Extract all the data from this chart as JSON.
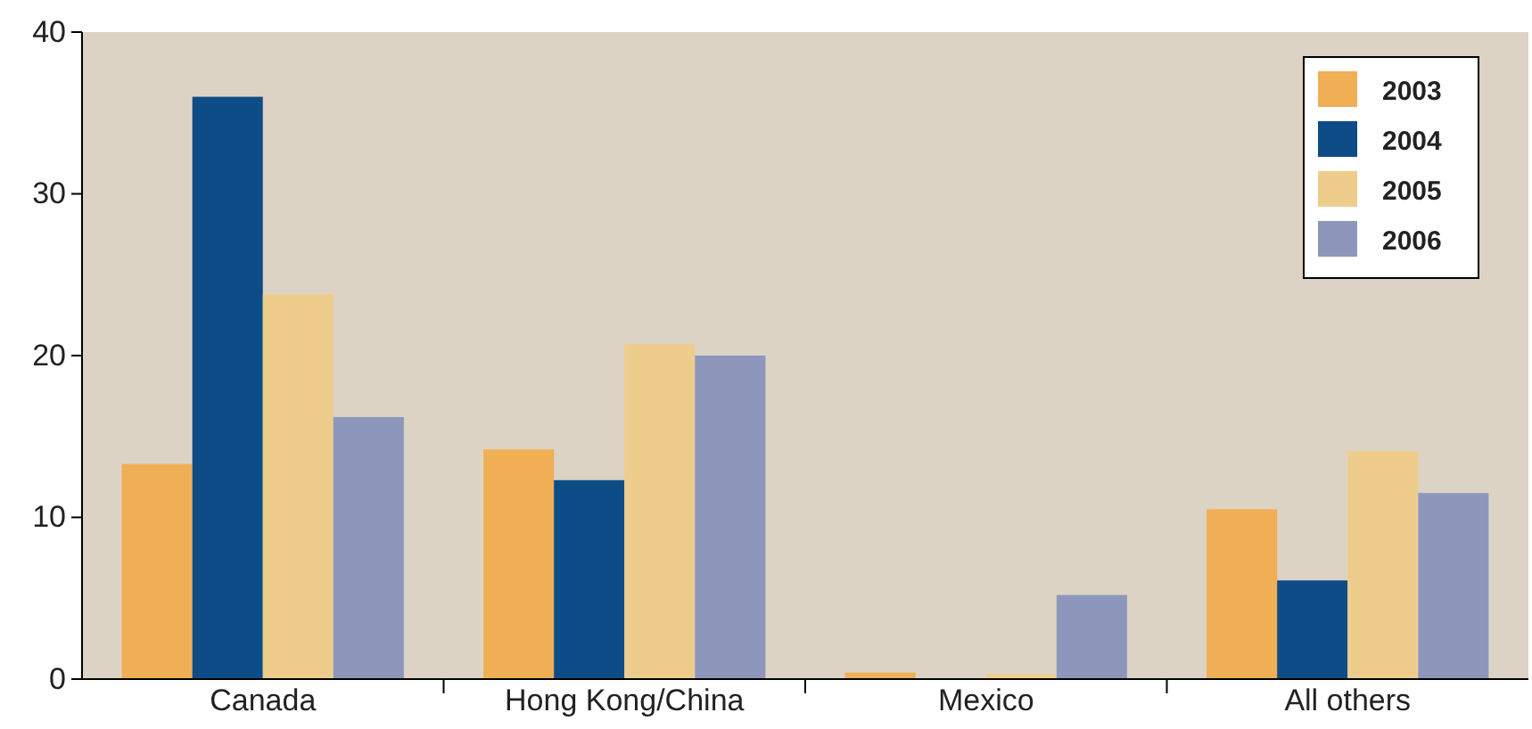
{
  "chart_data": {
    "type": "bar",
    "categories": [
      "Canada",
      "Hong Kong/China",
      "Mexico",
      "All others"
    ],
    "series": [
      {
        "name": "2003",
        "color": "#f0ae55",
        "values": [
          13.3,
          14.2,
          0.4,
          10.5
        ]
      },
      {
        "name": "2004",
        "color": "#0d4c86",
        "values": [
          36,
          12.3,
          0,
          6.1
        ]
      },
      {
        "name": "2005",
        "color": "#eecd8c",
        "values": [
          23.8,
          20.7,
          0.3,
          14.1
        ]
      },
      {
        "name": "2006",
        "color": "#8c97bb",
        "values": [
          16.2,
          20,
          5.2,
          11.5
        ]
      }
    ],
    "ylim": [
      0,
      40
    ],
    "yticks": [
      0,
      10,
      20,
      30,
      40
    ],
    "grid": false,
    "legend": "top right"
  }
}
